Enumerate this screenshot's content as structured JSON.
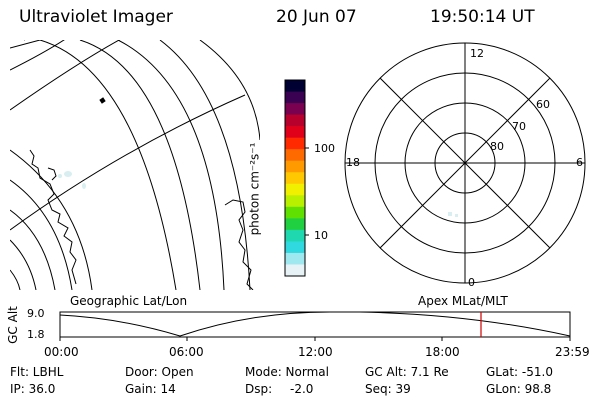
{
  "header": {
    "instrument": "Ultraviolet Imager",
    "date": "20 Jun 07",
    "time": "19:50:14 UT"
  },
  "map_panel": {
    "label": "Geographic Lat/Lon",
    "background": "#ffffff"
  },
  "colorbar": {
    "label": "photon cm⁻²s⁻¹",
    "ticks": [
      "100",
      "10"
    ],
    "colors": [
      "#000033",
      "#3a0052",
      "#7a0050",
      "#b8002c",
      "#e0001a",
      "#ff2a00",
      "#ff6a00",
      "#ff9a00",
      "#ffc800",
      "#f0f000",
      "#b8f000",
      "#60e000",
      "#20d040",
      "#20d8b0",
      "#30d8e0",
      "#a0e8ef",
      "#e6f2f6"
    ]
  },
  "polar_plot": {
    "label": "Apex MLat/MLT",
    "hours": [
      "12",
      "18",
      "6",
      "0"
    ],
    "latitudes": [
      "60",
      "70",
      "80"
    ]
  },
  "altitude_plot": {
    "axis_label": "GC Alt",
    "y_ticks": [
      "9.0",
      "1.8"
    ],
    "x_ticks": [
      "00:00",
      "06:00",
      "12:00",
      "18:00",
      "23:59"
    ],
    "marker_color": "#d00000"
  },
  "status": {
    "filter": "Flt: LBHL",
    "door": "Door: Open",
    "mode": "Mode: Normal",
    "gc_alt": "GC Alt: 7.1 Re",
    "glat": "GLat: -51.0",
    "ip": "IP: 36.0",
    "gain": "Gain: 14",
    "dsp_label": "Dsp:",
    "dsp_value": "-2.0",
    "seq": "Seq: 39",
    "glon": "GLon: 98.8"
  }
}
